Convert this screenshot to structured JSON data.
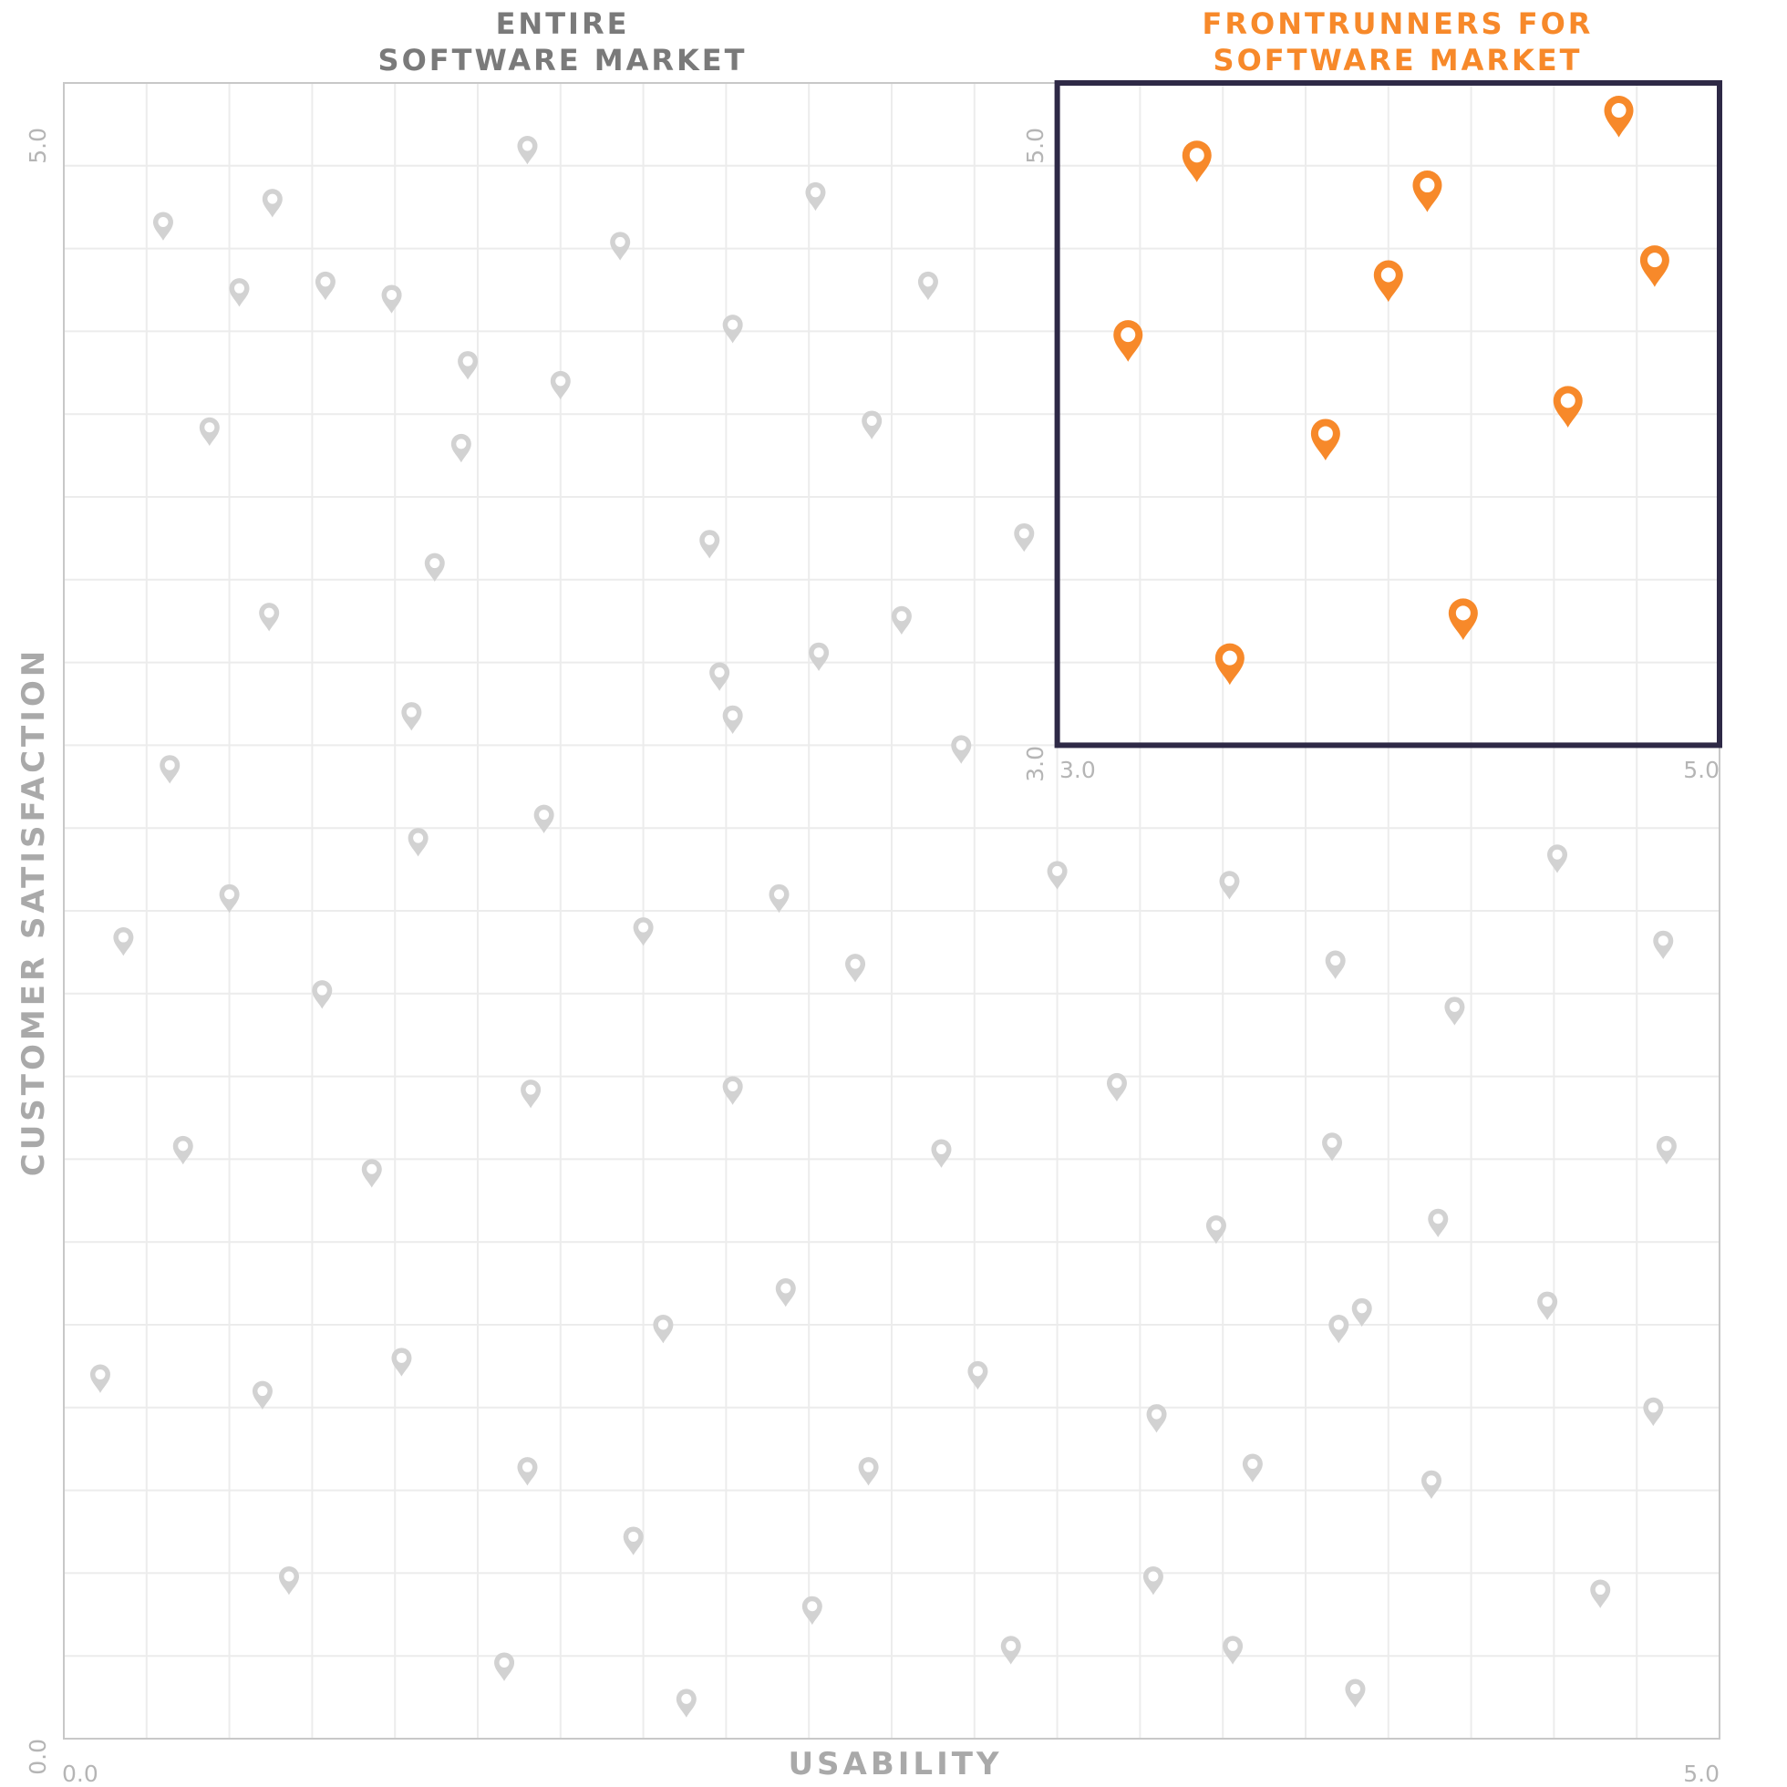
{
  "chart_data": [
    {
      "type": "scatter",
      "title": [
        "ENTIRE",
        "SOFTWARE MARKET"
      ],
      "xlabel": "USABILITY",
      "ylabel": "CUSTOMER SATISFACTION",
      "xlim": [
        0.0,
        5.0
      ],
      "ylim": [
        0.0,
        5.0
      ],
      "tick_labels": {
        "x_min": "0.0",
        "x_max": "5.0",
        "y_min": "0.0",
        "y_max": "5.0"
      },
      "grid": true,
      "marker": "map-pin-icon",
      "points": [
        [
          0.3,
          4.58
        ],
        [
          0.53,
          4.38
        ],
        [
          0.44,
          3.96
        ],
        [
          0.63,
          4.65
        ],
        [
          0.99,
          4.36
        ],
        [
          1.22,
          4.16
        ],
        [
          0.79,
          4.4
        ],
        [
          1.4,
          4.81
        ],
        [
          1.5,
          4.1
        ],
        [
          1.2,
          3.91
        ],
        [
          1.68,
          4.52
        ],
        [
          2.27,
          4.67
        ],
        [
          2.02,
          4.27
        ],
        [
          2.61,
          4.4
        ],
        [
          2.44,
          3.98
        ],
        [
          1.12,
          3.55
        ],
        [
          1.95,
          3.62
        ],
        [
          2.9,
          3.64
        ],
        [
          2.28,
          3.28
        ],
        [
          2.53,
          3.39
        ],
        [
          0.62,
          3.4
        ],
        [
          1.05,
          3.1
        ],
        [
          1.98,
          3.22
        ],
        [
          2.02,
          3.09
        ],
        [
          2.71,
          3.0
        ],
        [
          0.32,
          2.94
        ],
        [
          1.45,
          2.79
        ],
        [
          1.07,
          2.72
        ],
        [
          0.5,
          2.55
        ],
        [
          0.18,
          2.42
        ],
        [
          1.75,
          2.45
        ],
        [
          2.16,
          2.55
        ],
        [
          2.39,
          2.34
        ],
        [
          0.78,
          2.26
        ],
        [
          1.41,
          1.96
        ],
        [
          2.02,
          1.97
        ],
        [
          0.36,
          1.79
        ],
        [
          0.93,
          1.72
        ],
        [
          2.65,
          1.78
        ],
        [
          1.81,
          1.25
        ],
        [
          2.18,
          1.36
        ],
        [
          0.11,
          1.1
        ],
        [
          0.6,
          1.05
        ],
        [
          1.02,
          1.15
        ],
        [
          2.76,
          1.11
        ],
        [
          1.4,
          0.82
        ],
        [
          2.43,
          0.82
        ],
        [
          1.72,
          0.61
        ],
        [
          0.68,
          0.49
        ],
        [
          2.26,
          0.4
        ],
        [
          1.33,
          0.23
        ],
        [
          1.88,
          0.12
        ],
        [
          2.86,
          0.28
        ],
        [
          3.0,
          2.62
        ],
        [
          3.52,
          2.59
        ],
        [
          3.18,
          1.98
        ],
        [
          3.84,
          2.35
        ],
        [
          3.48,
          1.55
        ],
        [
          4.51,
          2.67
        ],
        [
          4.83,
          2.41
        ],
        [
          4.2,
          2.21
        ],
        [
          3.83,
          1.8
        ],
        [
          4.15,
          1.57
        ],
        [
          4.84,
          1.79
        ],
        [
          3.92,
          1.3
        ],
        [
          3.3,
          0.98
        ],
        [
          3.85,
          1.25
        ],
        [
          4.48,
          1.32
        ],
        [
          4.13,
          0.78
        ],
        [
          4.8,
          1.0
        ],
        [
          3.59,
          0.83
        ],
        [
          3.29,
          0.49
        ],
        [
          3.53,
          0.28
        ],
        [
          4.64,
          0.45
        ],
        [
          3.9,
          0.15
        ]
      ]
    },
    {
      "type": "scatter",
      "title": [
        "FRONTRUNNERS FOR",
        "SOFTWARE MARKET"
      ],
      "xlim": [
        3.0,
        5.0
      ],
      "ylim": [
        3.0,
        5.0
      ],
      "tick_labels": {
        "x_min": "3.0",
        "x_max": "5.0",
        "y_min": "3.0",
        "y_max": "5.0"
      },
      "grid": true,
      "marker": "map-pin-icon",
      "highlight_color": "#f7892a",
      "frame_color": "#2e2946",
      "points": [
        [
          3.13,
          4.25
        ],
        [
          3.36,
          4.85
        ],
        [
          3.47,
          3.17
        ],
        [
          3.79,
          3.92
        ],
        [
          4.0,
          4.45
        ],
        [
          4.13,
          4.75
        ],
        [
          4.25,
          3.32
        ],
        [
          4.6,
          4.03
        ],
        [
          4.77,
          5.0
        ],
        [
          4.89,
          4.5
        ]
      ]
    }
  ],
  "colors": {
    "background": "#ffffff",
    "grid": "#ececec",
    "frame": "#c8c8c8",
    "muted_marker": "#d2d2d2",
    "highlight": "#f7892a",
    "inset_frame": "#2e2946",
    "title_gray": "#7a7a7a",
    "axis_title": "#a9a9a9",
    "tick_text": "#b5b5b5"
  }
}
